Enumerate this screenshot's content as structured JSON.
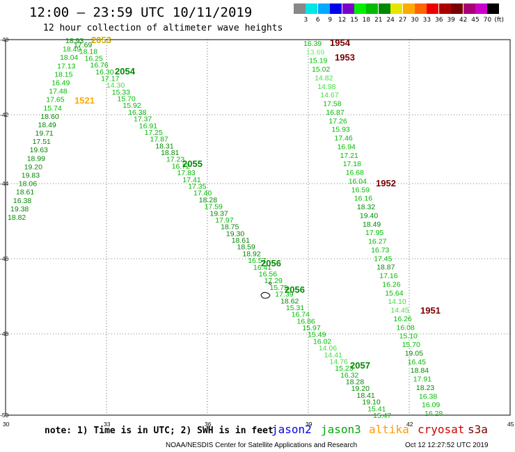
{
  "header": {
    "title": "12:00 – 23:59 UTC 10/11/2019",
    "subtitle": "12 hour collection of altimeter wave heights"
  },
  "legend": {
    "colors": [
      "#888888",
      "#00e5e5",
      "#00aaff",
      "#0000ee",
      "#7a00cc",
      "#00ee00",
      "#00bb00",
      "#008800",
      "#e5e500",
      "#ffaa00",
      "#ff6600",
      "#ee0000",
      "#aa0000",
      "#770000",
      "#aa0077",
      "#cc00cc",
      "#000000"
    ],
    "labels": [
      "3",
      "6",
      "9",
      "12",
      "15",
      "18",
      "21",
      "24",
      "27",
      "30",
      "33",
      "36",
      "39",
      "42",
      "45",
      "70"
    ],
    "unit": "(ft)"
  },
  "axes": {
    "lat_labels": [
      "-40",
      "-42",
      "-44",
      "-46",
      "-48",
      "-50"
    ],
    "lon_labels": [
      "30",
      "33",
      "36",
      "39",
      "42",
      "45"
    ]
  },
  "tracks": [
    {
      "points": [
        [
          "18.93",
          "#008800"
        ],
        [
          "18.49",
          "#00bb00"
        ],
        [
          "18.04",
          "#00bb00"
        ],
        [
          "17.13",
          "#00bb00"
        ],
        [
          "18.15",
          "#00bb00"
        ],
        [
          "16.49",
          "#00bb00"
        ],
        [
          "17.48",
          "#00bb00"
        ],
        [
          "17.65",
          "#00bb00"
        ],
        [
          "15.74",
          "#00bb00"
        ],
        [
          "18.60",
          "#008800"
        ],
        [
          "18.49",
          "#008800"
        ],
        [
          "19.71",
          "#008800"
        ],
        [
          "17.51",
          "#008800"
        ],
        [
          "19.63",
          "#008800"
        ],
        [
          "18.99",
          "#008800"
        ],
        [
          "19.20",
          "#008800"
        ],
        [
          "19.83",
          "#008800"
        ],
        [
          "18.06",
          "#008800"
        ],
        [
          "18.61",
          "#008800"
        ],
        [
          "16.38",
          "#008800"
        ],
        [
          "19.38",
          "#008800"
        ],
        [
          "18.82",
          "#008800"
        ]
      ],
      "passes": [
        [
          "2053",
          "#ccaa00"
        ],
        [
          "1521",
          "#ffaa00"
        ]
      ]
    },
    {
      "points": [
        [
          "17.69",
          "#008800"
        ],
        [
          "18.18",
          "#00bb00"
        ],
        [
          "16.25",
          "#00bb00"
        ],
        [
          "16.76",
          "#00bb00"
        ],
        [
          "16.30",
          "#00bb00"
        ],
        [
          "17.17",
          "#00bb00"
        ],
        [
          "14.30",
          "#44dd44"
        ],
        [
          "15.33",
          "#00bb00"
        ],
        [
          "15.70",
          "#00bb00"
        ],
        [
          "15.92",
          "#00bb00"
        ],
        [
          "16.38",
          "#00bb00"
        ],
        [
          "17.37",
          "#00bb00"
        ],
        [
          "16.91",
          "#00bb00"
        ],
        [
          "17.25",
          "#00bb00"
        ],
        [
          "17.87",
          "#00bb00"
        ],
        [
          "18.31",
          "#008800"
        ],
        [
          "18.81",
          "#008800"
        ],
        [
          "17.23",
          "#00bb00"
        ],
        [
          "16.72",
          "#00bb00"
        ],
        [
          "17.83",
          "#00bb00"
        ],
        [
          "17.41",
          "#00bb00"
        ],
        [
          "17.35",
          "#00bb00"
        ],
        [
          "17.40",
          "#00bb00"
        ],
        [
          "18.28",
          "#008800"
        ],
        [
          "17.59",
          "#00bb00"
        ],
        [
          "19.37",
          "#008800"
        ],
        [
          "17.97",
          "#00bb00"
        ],
        [
          "18.75",
          "#008800"
        ],
        [
          "19.30",
          "#008800"
        ],
        [
          "18.61",
          "#008800"
        ],
        [
          "18.59",
          "#008800"
        ],
        [
          "18.92",
          "#008800"
        ],
        [
          "16.57",
          "#00bb00"
        ],
        [
          "16.41",
          "#00bb00"
        ],
        [
          "16.56",
          "#00bb00"
        ],
        [
          "17.29",
          "#00bb00"
        ],
        [
          "15.75",
          "#00bb00"
        ],
        [
          "17.39",
          "#00bb00"
        ],
        [
          "18.62",
          "#008800"
        ],
        [
          "15.31",
          "#00bb00"
        ],
        [
          "16.74",
          "#00bb00"
        ],
        [
          "16.86",
          "#00bb00"
        ],
        [
          "15.97",
          "#00bb00"
        ],
        [
          "15.49",
          "#00bb00"
        ],
        [
          "16.02",
          "#00bb00"
        ],
        [
          "14.06",
          "#44dd44"
        ],
        [
          "14.41",
          "#44dd44"
        ],
        [
          "14.76",
          "#44dd44"
        ],
        [
          "15.23",
          "#00bb00"
        ],
        [
          "16.32",
          "#00bb00"
        ],
        [
          "18.28",
          "#008800"
        ],
        [
          "19.20",
          "#008800"
        ],
        [
          "18.41",
          "#008800"
        ],
        [
          "19.10",
          "#008800"
        ],
        [
          "15.41",
          "#00bb00"
        ],
        [
          "15.47",
          "#00bb00"
        ]
      ],
      "passes": [
        [
          "2054",
          "#008800"
        ],
        [
          "2055",
          "#008800"
        ],
        [
          "2056",
          "#008800"
        ],
        [
          "2056",
          "#008800"
        ],
        [
          "2057",
          "#008800"
        ]
      ]
    },
    {
      "points": [
        [
          "16.39",
          "#00bb00"
        ],
        [
          "13.69",
          "#66ee66"
        ],
        [
          "15.19",
          "#00bb00"
        ],
        [
          "15.02",
          "#00bb00"
        ],
        [
          "14.82",
          "#44dd44"
        ],
        [
          "14.98",
          "#44dd44"
        ],
        [
          "14.67",
          "#44dd44"
        ],
        [
          "17.58",
          "#00bb00"
        ],
        [
          "16.87",
          "#00bb00"
        ],
        [
          "17.26",
          "#00bb00"
        ],
        [
          "15.93",
          "#00bb00"
        ],
        [
          "17.46",
          "#00bb00"
        ],
        [
          "16.94",
          "#00bb00"
        ],
        [
          "17.21",
          "#00bb00"
        ],
        [
          "17.18",
          "#00bb00"
        ],
        [
          "16.68",
          "#00bb00"
        ],
        [
          "16.04",
          "#00bb00"
        ],
        [
          "16.59",
          "#00bb00"
        ],
        [
          "16.16",
          "#00bb00"
        ],
        [
          "18.32",
          "#008800"
        ],
        [
          "19.40",
          "#008800"
        ],
        [
          "18.49",
          "#008800"
        ],
        [
          "17.95",
          "#00bb00"
        ],
        [
          "16.27",
          "#00bb00"
        ],
        [
          "16.73",
          "#00bb00"
        ],
        [
          "17.45",
          "#00bb00"
        ],
        [
          "18.87",
          "#008800"
        ],
        [
          "17.16",
          "#00bb00"
        ],
        [
          "16.26",
          "#00bb00"
        ],
        [
          "15.64",
          "#00bb00"
        ],
        [
          "14.10",
          "#44dd44"
        ],
        [
          "14.45",
          "#44dd44"
        ],
        [
          "16.26",
          "#00bb00"
        ],
        [
          "16.08",
          "#00bb00"
        ],
        [
          "15.10",
          "#00bb00"
        ],
        [
          "15.70",
          "#00bb00"
        ],
        [
          "19.05",
          "#008800"
        ],
        [
          "16.45",
          "#00bb00"
        ],
        [
          "18.84",
          "#008800"
        ],
        [
          "17.91",
          "#00bb00"
        ],
        [
          "18.23",
          "#008800"
        ],
        [
          "16.38",
          "#00bb00"
        ],
        [
          "16.09",
          "#00bb00"
        ],
        [
          "16.28",
          "#00bb00"
        ]
      ],
      "passes": [
        [
          "1954",
          "#770000"
        ],
        [
          "1953",
          "#770000"
        ],
        [
          "1952",
          "#770000"
        ],
        [
          "1951",
          "#770000"
        ]
      ]
    }
  ],
  "footer": {
    "note": "note: 1) Time is in UTC; 2) SWH is in feet",
    "satellites": [
      {
        "name": "jason2",
        "color": "#0000ee"
      },
      {
        "name": "jason3",
        "color": "#00aa00"
      },
      {
        "name": "altika",
        "color": "#ff9900"
      },
      {
        "name": "cryosat",
        "color": "#cc0000"
      },
      {
        "name": "s3a",
        "color": "#770000"
      }
    ],
    "credit": "NOAA/NESDIS Center for Satellite Applications and Research",
    "timestamp": "Oct 12 12:27:52 UTC 2019"
  }
}
